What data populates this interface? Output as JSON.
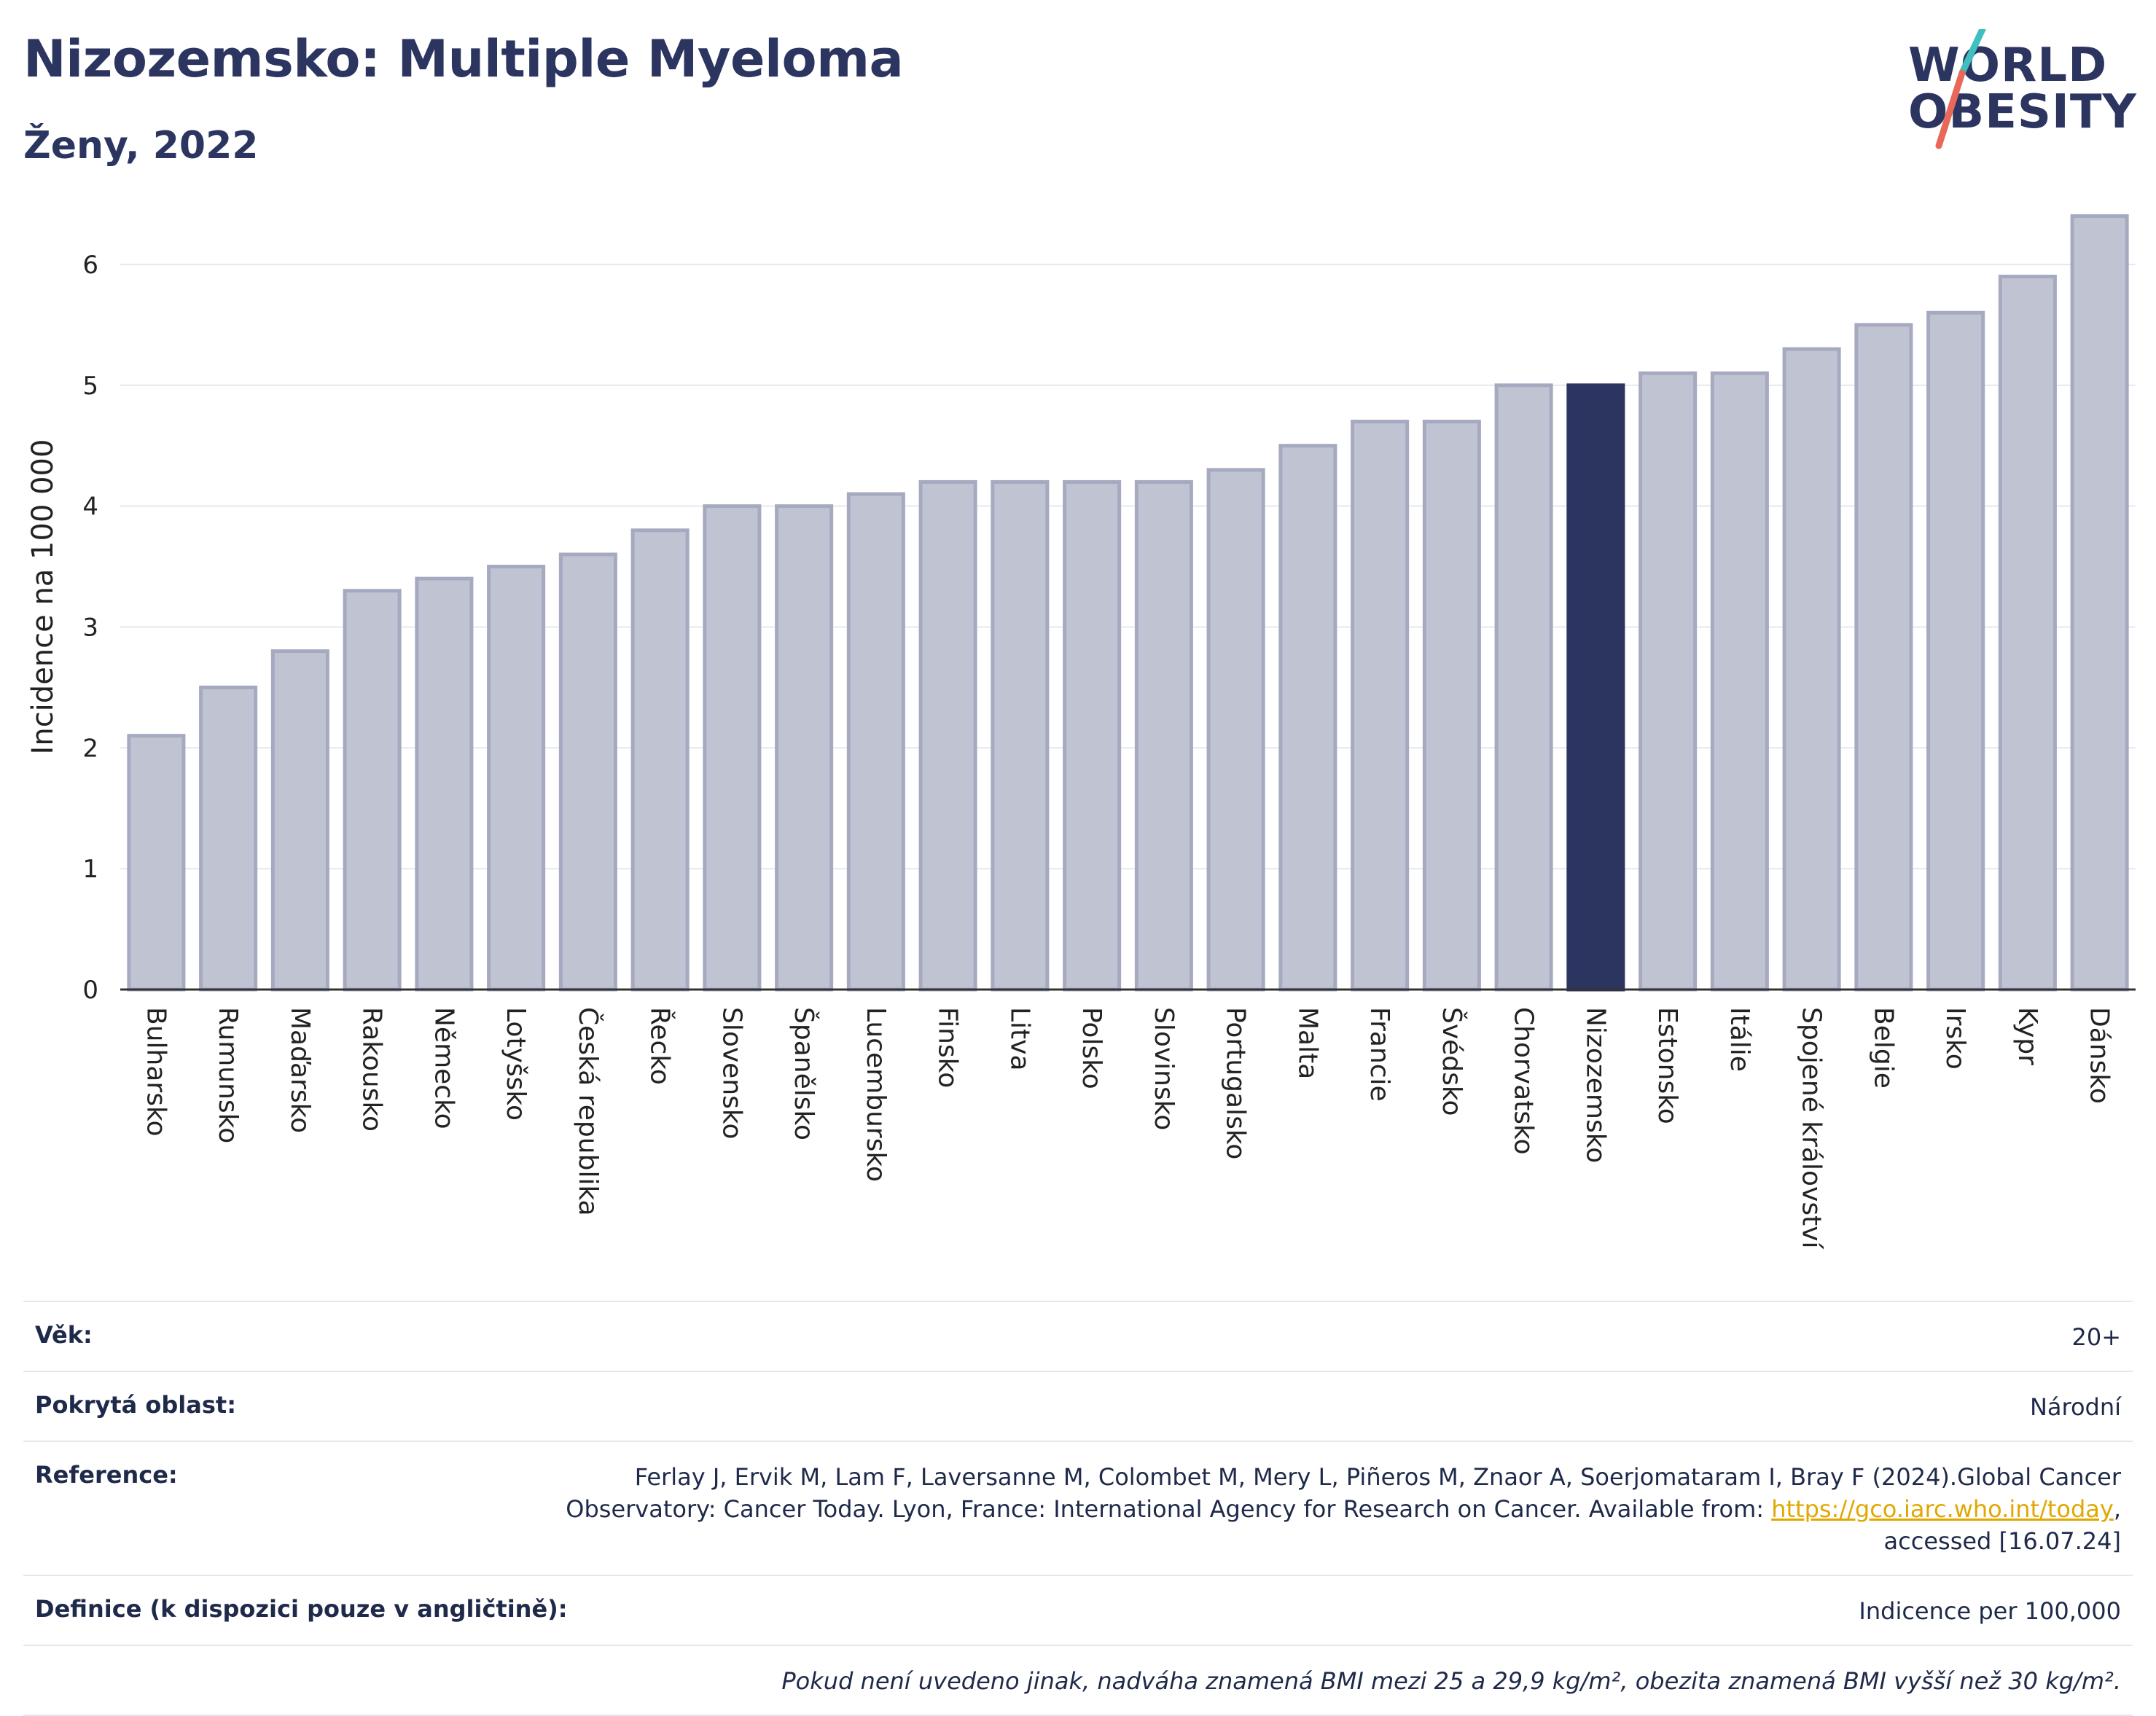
{
  "header": {
    "title": "Nizozemsko: Multiple Myeloma",
    "subtitle": "Ženy, 2022"
  },
  "logo": {
    "line1": "WORLD",
    "line2": "OBESITY",
    "colors": {
      "text": "#2b3560",
      "slash_top": "#3fbfbf",
      "slash_bottom": "#e8685a"
    }
  },
  "chart_data": {
    "type": "bar",
    "title": "",
    "xlabel": "",
    "ylabel": "Incidence na 100 000",
    "ylim": [
      0,
      6.5
    ],
    "yticks": [
      0,
      1,
      2,
      3,
      4,
      5,
      6
    ],
    "grid": true,
    "highlight": "Nizozemsko",
    "colors": {
      "bar": "#c0c4d2",
      "bar_edge": "#a5aac0",
      "highlight": "#2b3560",
      "grid": "#e6e8ee",
      "axis": "#333333"
    },
    "categories": [
      "Bulharsko",
      "Rumunsko",
      "Maďarsko",
      "Rakousko",
      "Německo",
      "Lotyšsko",
      "Česká republika",
      "Řecko",
      "Slovensko",
      "Španělsko",
      "Lucembursko",
      "Finsko",
      "Litva",
      "Polsko",
      "Slovinsko",
      "Portugalsko",
      "Malta",
      "Francie",
      "Švédsko",
      "Chorvatsko",
      "Nizozemsko",
      "Estonsko",
      "Itálie",
      "Spojené království",
      "Belgie",
      "Irsko",
      "Kypr",
      "Dánsko"
    ],
    "values": [
      2.1,
      2.5,
      2.8,
      3.3,
      3.4,
      3.5,
      3.6,
      3.8,
      4.0,
      4.0,
      4.1,
      4.2,
      4.2,
      4.2,
      4.2,
      4.3,
      4.5,
      4.7,
      4.7,
      5.0,
      5.0,
      5.1,
      5.1,
      5.3,
      5.5,
      5.6,
      5.9,
      6.4
    ]
  },
  "meta": {
    "age_label": "Věk:",
    "age_value": "20+",
    "area_label": "Pokrytá oblast:",
    "area_value": "Národní",
    "ref_label": "Reference:",
    "ref_text_1": "Ferlay J, Ervik M, Lam F, Laversanne M, Colombet M, Mery L, Piñeros M, Znaor A, Soerjomataram I, Bray F (2024).Global Cancer Observatory: Cancer Today. Lyon, France: International Agency for Research on Cancer. Available from: ",
    "ref_link": "https://gco.iarc.who.int/today",
    "ref_text_2": ", accessed [16.07.24]",
    "def_label": "Definice (k dispozici pouze v angličtině):",
    "def_value": "Indicence per 100,000",
    "note": "Pokud není uvedeno jinak, nadváha znamená BMI mezi 25 a 29,9 kg/m², obezita znamená BMI vyšší než 30 kg/m²."
  }
}
